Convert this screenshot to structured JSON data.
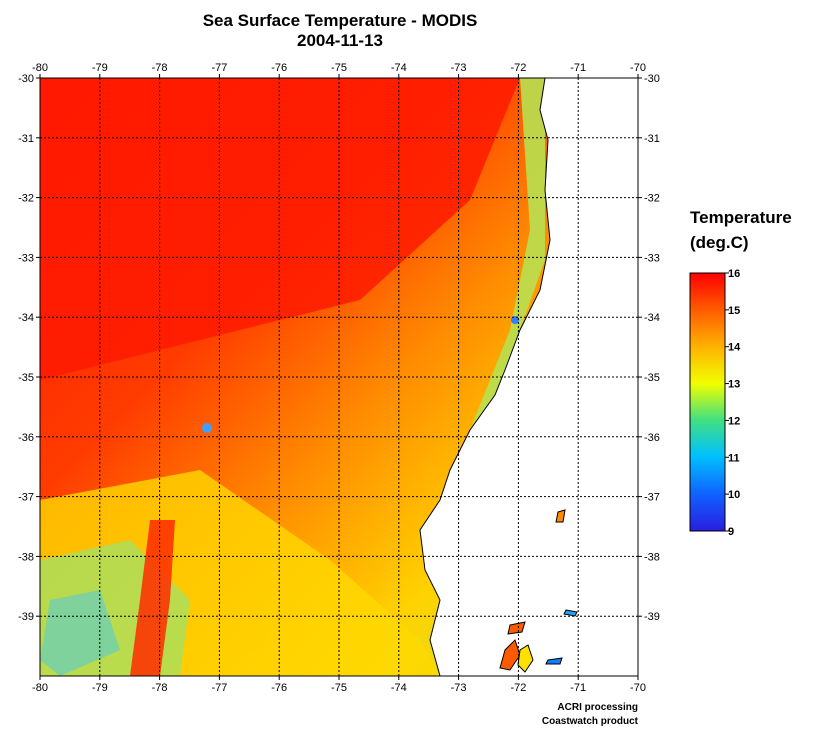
{
  "title_line1": "Sea Surface Temperature - MODIS",
  "title_line2": "2004-11-13",
  "legend": {
    "title_line1": "Temperature",
    "title_line2": "(deg.C)",
    "min": 9,
    "max": 16,
    "ticks": [
      "16",
      "15",
      "14",
      "13",
      "12",
      "11",
      "10",
      "9"
    ]
  },
  "credits": {
    "line1": "ACRI processing",
    "line2": "Coastwatch product"
  },
  "colors": {
    "warm": "#ff1a00",
    "mid": "#ffcc00",
    "cool": "#2a40ff",
    "land": "#ffffff",
    "grid": "#000000"
  },
  "chart_data": {
    "type": "heatmap",
    "x_range": [
      -80,
      -70
    ],
    "y_range": [
      -40,
      -30
    ],
    "x_ticks": [
      "-80",
      "-79",
      "-78",
      "-77",
      "-76",
      "-75",
      "-74",
      "-73",
      "-72",
      "-71",
      "-70"
    ],
    "y_ticks": [
      "-30",
      "-31",
      "-32",
      "-33",
      "-34",
      "-35",
      "-36",
      "-37",
      "-38",
      "-39"
    ],
    "grid": true,
    "colorbar_range": [
      9,
      16
    ]
  }
}
